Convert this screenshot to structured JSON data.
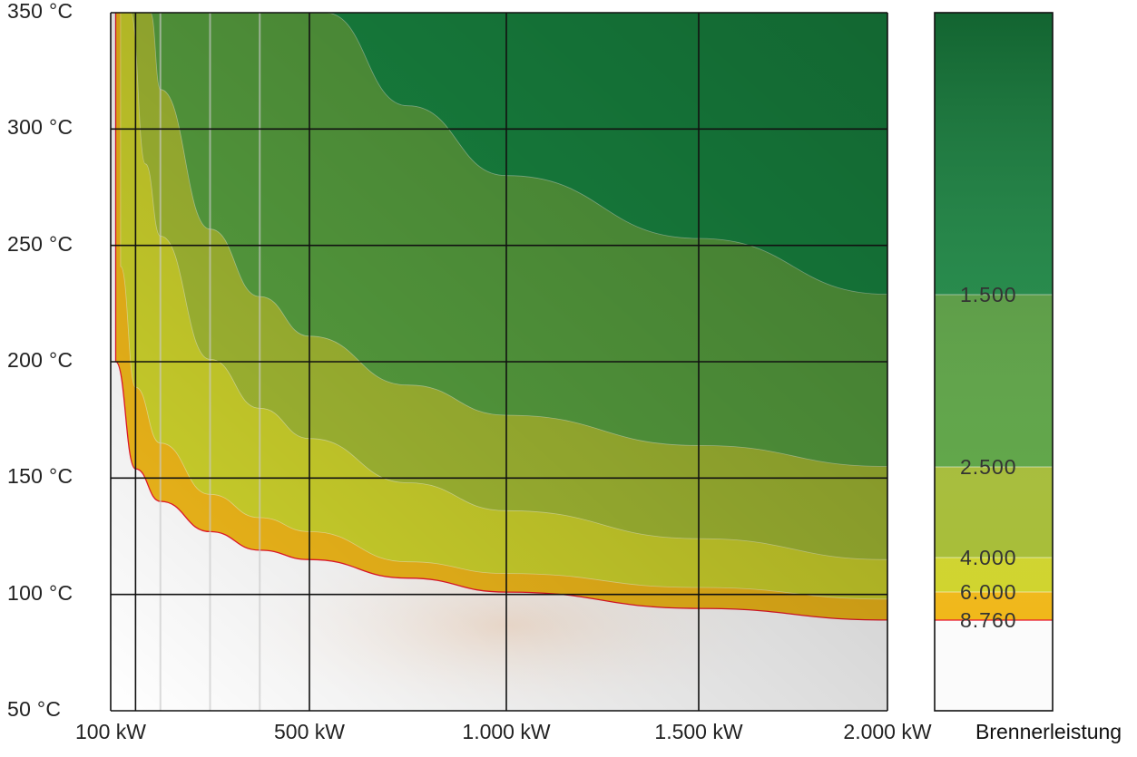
{
  "chart_data": {
    "type": "area",
    "xlabel": "Brennerleistung",
    "x_unit": "kW",
    "y_unit": "°C",
    "xlim": [
      100,
      2000
    ],
    "ylim": [
      50,
      350
    ],
    "x_ticks": [
      {
        "value": 100,
        "label": "100 kW"
      },
      {
        "value": 500,
        "label": "500 kW"
      },
      {
        "value": 1000,
        "label": "1.000 kW"
      },
      {
        "value": 1500,
        "label": "1.500 kW"
      },
      {
        "value": 2000,
        "label": "2.000 kW"
      }
    ],
    "x_gridlines": [
      150,
      200,
      300,
      400,
      500,
      1000,
      1500,
      2000
    ],
    "y_ticks": [
      {
        "value": 350,
        "label": "350 °C"
      },
      {
        "value": 300,
        "label": "300 °C"
      },
      {
        "value": 250,
        "label": "250 °C"
      },
      {
        "value": 200,
        "label": "200 °C"
      },
      {
        "value": 150,
        "label": "150 °C"
      },
      {
        "value": 100,
        "label": "100 °C"
      },
      {
        "value": 50,
        "label": "50 °C"
      }
    ],
    "grid": true,
    "legend": {
      "type": "colorbar",
      "placement": "right",
      "levels": [
        {
          "label": "1.500",
          "value": 1500,
          "color": "#1a8f45"
        },
        {
          "label": "2.500",
          "value": 2500,
          "color": "#5aa541"
        },
        {
          "label": "4.000",
          "value": 4000,
          "color": "#a6bd34"
        },
        {
          "label": "6.000",
          "value": 6000,
          "color": "#cfd42c"
        },
        {
          "label": "8.760",
          "value": 8760,
          "color": "#f0b81a"
        }
      ]
    },
    "series": [
      {
        "name": "8.760",
        "color": "#f0b81a",
        "boundary_color": "#e8172b",
        "x": [
          110,
          150,
          200,
          300,
          400,
          500,
          750,
          1000,
          1500,
          2000
        ],
        "y": [
          200,
          154,
          140,
          127,
          119,
          115,
          107,
          101,
          94,
          89
        ]
      },
      {
        "name": "6.000",
        "color": "#cfd42c",
        "x": [
          120,
          150,
          200,
          300,
          400,
          500,
          750,
          1000,
          1500,
          2000
        ],
        "y": [
          241,
          189,
          165,
          143,
          133,
          127,
          114,
          109,
          103,
          98
        ]
      },
      {
        "name": "4.000",
        "color": "#a6bd34",
        "x": [
          140,
          170,
          200,
          300,
          400,
          500,
          750,
          1000,
          1500,
          2000
        ],
        "y": [
          350,
          285,
          254,
          201,
          180,
          167,
          148,
          136,
          124,
          115
        ]
      },
      {
        "name": "2.500",
        "color": "#5aa541",
        "x": [
          180,
          200,
          300,
          400,
          500,
          750,
          1000,
          1500,
          2000
        ],
        "y": [
          350,
          317,
          257,
          228,
          211,
          190,
          177,
          164,
          155
        ]
      },
      {
        "name": "1.500",
        "color": "#1a8f45",
        "x": [
          540,
          750,
          1000,
          1500,
          2000
        ],
        "y": [
          350,
          310,
          280,
          253,
          229
        ]
      }
    ]
  }
}
